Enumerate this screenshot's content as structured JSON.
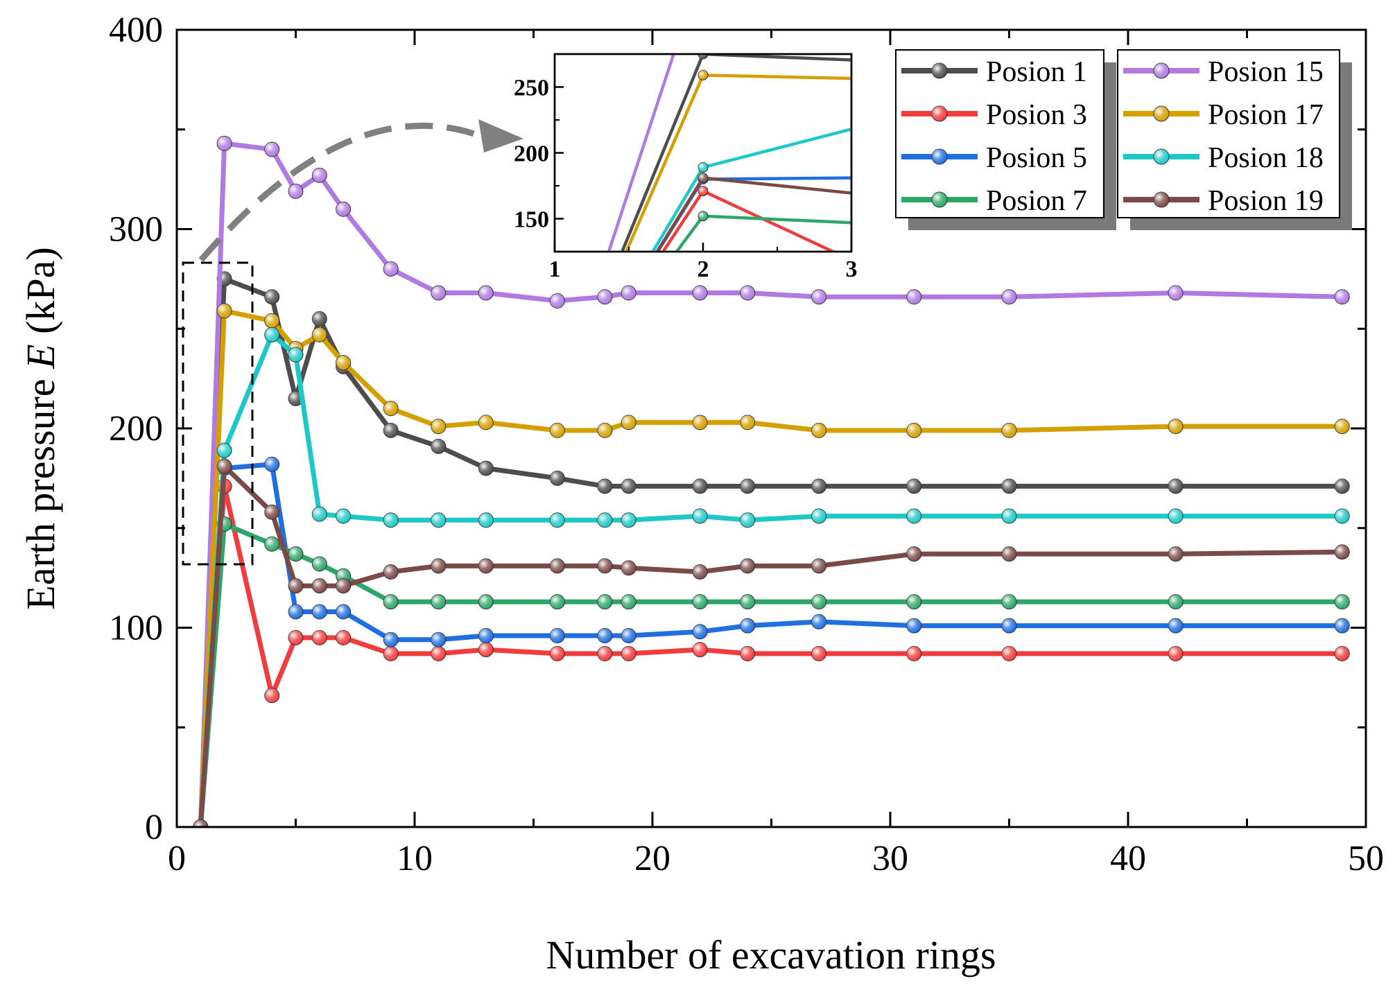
{
  "chart_data": {
    "type": "line",
    "title": "",
    "xlabel": "Number of excavation rings",
    "ylabel_parts": [
      "Earth pressure ",
      "E",
      " (kPa)"
    ],
    "xlim": [
      0,
      50
    ],
    "ylim": [
      0,
      400
    ],
    "xticks": [
      0,
      10,
      20,
      30,
      40,
      50
    ],
    "yticks": [
      0,
      100,
      200,
      300,
      400
    ],
    "grid": false,
    "legend_position": "top-right",
    "x": [
      1,
      2,
      4,
      5,
      6,
      7,
      9,
      11,
      13,
      16,
      18,
      19,
      22,
      24,
      27,
      31,
      35,
      42,
      49
    ],
    "series": [
      {
        "name": "Posion 1",
        "color": "#4d4d4d",
        "values": [
          0,
          275,
          266,
          215,
          255,
          231,
          199,
          191,
          180,
          175,
          171,
          171,
          171,
          171,
          171,
          171,
          171,
          171,
          171
        ]
      },
      {
        "name": "Posion 3",
        "color": "#f03c3c",
        "values": [
          0,
          171,
          66,
          95,
          95,
          95,
          87,
          87,
          89,
          87,
          87,
          87,
          89,
          87,
          87,
          87,
          87,
          87,
          87
        ]
      },
      {
        "name": "Posion 5",
        "color": "#1f6fe0",
        "values": [
          0,
          180,
          182,
          108,
          108,
          108,
          94,
          94,
          96,
          96,
          96,
          96,
          98,
          101,
          103,
          101,
          101,
          101,
          101
        ]
      },
      {
        "name": "Posion 7",
        "color": "#2ea66a",
        "values": [
          0,
          152,
          142,
          137,
          132,
          126,
          113,
          113,
          113,
          113,
          113,
          113,
          113,
          113,
          113,
          113,
          113,
          113,
          113
        ]
      },
      {
        "name": "Posion 15",
        "color": "#b07ae0",
        "values": [
          0,
          343,
          340,
          319,
          327,
          310,
          280,
          268,
          268,
          264,
          266,
          268,
          268,
          268,
          266,
          266,
          266,
          268,
          266
        ]
      },
      {
        "name": "Posion 17",
        "color": "#d4a000",
        "values": [
          0,
          259,
          254,
          240,
          247,
          233,
          210,
          201,
          203,
          199,
          199,
          203,
          203,
          203,
          199,
          199,
          199,
          201,
          201
        ]
      },
      {
        "name": "Posion 18",
        "color": "#1fc8c8",
        "values": [
          0,
          189,
          247,
          237,
          157,
          156,
          154,
          154,
          154,
          154,
          154,
          154,
          156,
          154,
          156,
          156,
          156,
          156,
          156
        ]
      },
      {
        "name": "Posion 19",
        "color": "#7a4a48",
        "values": [
          0,
          181,
          158,
          121,
          121,
          121,
          128,
          131,
          131,
          131,
          131,
          130,
          128,
          131,
          131,
          137,
          137,
          137,
          138
        ]
      }
    ],
    "inset": {
      "xlim": [
        1,
        3
      ],
      "ylim": [
        125,
        275
      ],
      "xticks": [
        1,
        2,
        3
      ],
      "yticks": [
        150,
        200,
        250
      ]
    }
  }
}
